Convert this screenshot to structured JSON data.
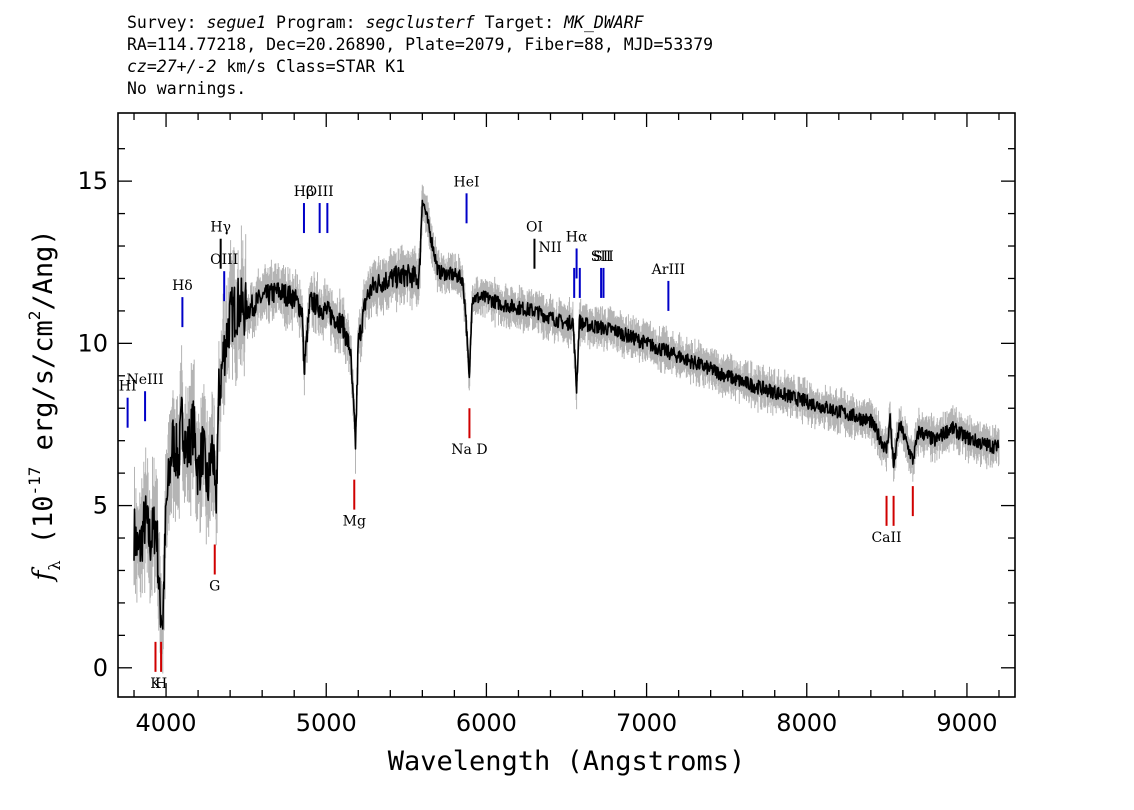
{
  "header": {
    "line1": {
      "survey_label": "Survey: ",
      "survey": "segue1",
      "program_label": " Program: ",
      "program": "segclusterf",
      "target_label": " Target: ",
      "target": "MK_DWARF"
    },
    "line2": "RA=114.77218, Dec=20.26890, Plate=2079, Fiber=88, MJD=53379",
    "line3": {
      "cz": "cz=27+/-2",
      "rest": " km/s Class=STAR K1"
    },
    "line4": "No warnings."
  },
  "chart_data": {
    "type": "line",
    "xlabel": "Wavelength (Angstroms)",
    "ylabel": "f_λ (10^-17 erg/s/cm^2/Ang)",
    "xlim": [
      3700,
      9300
    ],
    "ylim": [
      -0.9,
      17.1
    ],
    "x_ticks": [
      4000,
      5000,
      6000,
      7000,
      8000,
      9000
    ],
    "y_ticks": [
      0,
      5,
      10,
      15
    ],
    "series": [
      {
        "style": "black-flux-with-gray-error",
        "x": [
          3800,
          3830,
          3870,
          3900,
          3940,
          3960,
          3980,
          4000,
          4040,
          4080,
          4100,
          4130,
          4170,
          4200,
          4230,
          4260,
          4290,
          4310,
          4330,
          4360,
          4400,
          4450,
          4500,
          4600,
          4700,
          4800,
          4850,
          4861,
          4900,
          5000,
          5100,
          5150,
          5170,
          5183,
          5200,
          5250,
          5300,
          5400,
          5500,
          5580,
          5600,
          5700,
          5800,
          5850,
          5870,
          5893,
          5910,
          6000,
          6100,
          6200,
          6300,
          6400,
          6500,
          6540,
          6563,
          6580,
          6600,
          6700,
          6800,
          7000,
          7200,
          7400,
          7600,
          7800,
          8000,
          8200,
          8400,
          8498,
          8520,
          8542,
          8580,
          8662,
          8700,
          8800,
          8900,
          9000,
          9100,
          9200
        ],
        "y": [
          4.2,
          3.5,
          4.6,
          3.9,
          4.5,
          2.0,
          1.5,
          4.8,
          7.0,
          6.4,
          7.8,
          6.6,
          7.5,
          6.0,
          6.8,
          5.5,
          6.9,
          4.8,
          8.4,
          9.7,
          10.8,
          11.2,
          11.0,
          11.4,
          11.6,
          11.4,
          11.0,
          9.2,
          11.3,
          11.0,
          10.6,
          9.8,
          8.0,
          6.9,
          10.0,
          11.4,
          11.8,
          12.0,
          12.1,
          12.0,
          14.5,
          12.2,
          12.1,
          12.0,
          11.0,
          8.8,
          11.4,
          11.4,
          11.2,
          11.1,
          11.0,
          10.8,
          10.6,
          10.7,
          8.6,
          10.7,
          10.6,
          10.5,
          10.4,
          10.0,
          9.6,
          9.2,
          8.8,
          8.5,
          8.2,
          7.9,
          7.6,
          6.7,
          7.7,
          6.2,
          7.5,
          6.4,
          7.3,
          7.0,
          7.4,
          7.1,
          6.9,
          6.8
        ]
      }
    ],
    "lines": [
      {
        "label": "HI",
        "wave": 3760,
        "y": 7.4,
        "color": "#0000c8",
        "labelpos": "above"
      },
      {
        "label": "NeIII",
        "wave": 3869,
        "y": 7.6,
        "color": "#0000c8",
        "labelpos": "above"
      },
      {
        "label": "Hδ",
        "wave": 4102,
        "y": 10.5,
        "color": "#0000c8",
        "labelpos": "above"
      },
      {
        "label": "Hγ",
        "wave": 4341,
        "y": 12.3,
        "color": "#000000",
        "labelpos": "above"
      },
      {
        "label": "OIII",
        "wave": 4363,
        "y": 11.3,
        "color": "#0000c8",
        "labelpos": "above"
      },
      {
        "label": "Hβ",
        "wave": 4861,
        "y": 13.4,
        "color": "#0000c8",
        "labelpos": "above"
      },
      {
        "label": "OIII",
        "wave": 4959,
        "y": 13.4,
        "color": "#0000c8",
        "labelpos": "above"
      },
      {
        "label": "OIII",
        "wave": 5007,
        "y": 13.4,
        "color": "#0000c8",
        "labelpos": "none"
      },
      {
        "label": "HeI",
        "wave": 5876,
        "y": 13.7,
        "color": "#0000c8",
        "labelpos": "above"
      },
      {
        "label": "OI",
        "wave": 6300,
        "y": 12.3,
        "color": "#000000",
        "labelpos": "above"
      },
      {
        "label": "NII",
        "wave": 6548,
        "y": 11.4,
        "color": "#0000c8",
        "labelpos": "above-left"
      },
      {
        "label": "Hα",
        "wave": 6563,
        "y": 12.0,
        "color": "#0000c8",
        "labelpos": "above"
      },
      {
        "label": "NII",
        "wave": 6583,
        "y": 11.4,
        "color": "#0000c8",
        "labelpos": "none"
      },
      {
        "label": "SII",
        "wave": 6716,
        "y": 11.4,
        "color": "#0000c8",
        "labelpos": "above"
      },
      {
        "label": "SII",
        "wave": 6731,
        "y": 11.4,
        "color": "#0000c8",
        "labelpos": "above"
      },
      {
        "label": "ArIII",
        "wave": 7136,
        "y": 11.0,
        "color": "#0000c8",
        "labelpos": "above"
      },
      {
        "label": "K",
        "wave": 3934,
        "y": 0.8,
        "color": "#d00000",
        "labelpos": "below"
      },
      {
        "label": "H",
        "wave": 3969,
        "y": 0.8,
        "color": "#d00000",
        "labelpos": "below"
      },
      {
        "label": "G",
        "wave": 4304,
        "y": 3.8,
        "color": "#d00000",
        "labelpos": "below"
      },
      {
        "label": "Mg",
        "wave": 5175,
        "y": 5.8,
        "color": "#d00000",
        "labelpos": "below"
      },
      {
        "label": "Na D",
        "wave": 5894,
        "y": 8.0,
        "color": "#d00000",
        "labelpos": "below"
      },
      {
        "label": "CaII",
        "wave": 8498,
        "y": 5.3,
        "color": "#d00000",
        "labelpos": "below"
      },
      {
        "label": "CaII",
        "wave": 8542,
        "y": 5.3,
        "color": "#d00000",
        "labelpos": "none"
      },
      {
        "label": "CaII",
        "wave": 8662,
        "y": 5.6,
        "color": "#d00000",
        "labelpos": "none"
      }
    ]
  }
}
